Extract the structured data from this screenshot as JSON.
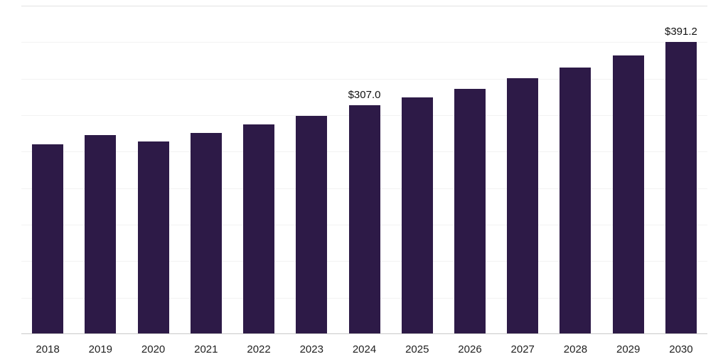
{
  "chart_data": {
    "type": "bar",
    "title": "",
    "xlabel": "",
    "ylabel": "",
    "categories": [
      "2018",
      "2019",
      "2020",
      "2021",
      "2022",
      "2023",
      "2024",
      "2025",
      "2026",
      "2027",
      "2028",
      "2029",
      "2030"
    ],
    "values": [
      254,
      267,
      258,
      270,
      281,
      292,
      307.0,
      317,
      329,
      343,
      357,
      373,
      391.2
    ],
    "annotations": [
      {
        "category": "2024",
        "text": "$307.0"
      },
      {
        "category": "2030",
        "text": "$391.2"
      }
    ],
    "ylim": [
      0,
      440
    ],
    "grid": true,
    "gridline_count": 9,
    "legend": false,
    "bar_color": "#2d1a47",
    "gridline_color": "#f2f2f2",
    "top_gridline_color": "#e2e2e2",
    "axis_line_color": "#c9c9c9",
    "label_color": "#111111",
    "tick_label_color": "#1f1f1f"
  }
}
